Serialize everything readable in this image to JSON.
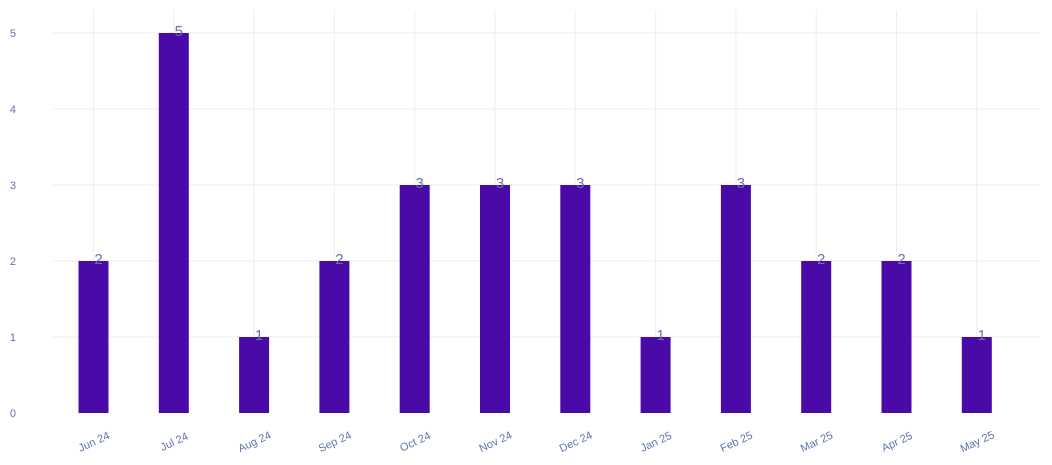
{
  "chart_data": {
    "type": "bar",
    "categories": [
      "Jun 24",
      "Jul 24",
      "Aug 24",
      "Sep 24",
      "Oct 24",
      "Nov 24",
      "Dec 24",
      "Jan 25",
      "Feb 25",
      "Mar 25",
      "Apr 25",
      "May 25"
    ],
    "values": [
      2,
      5,
      1,
      2,
      3,
      3,
      3,
      1,
      3,
      2,
      2,
      1
    ],
    "title": "",
    "xlabel": "",
    "ylabel": "",
    "ylim": [
      0,
      5
    ],
    "yticks": [
      "0",
      "1",
      "2",
      "3",
      "4",
      "5"
    ],
    "grid": true,
    "data_labels": true,
    "colors": {
      "bar": "#4a0aa8",
      "text": "#6670b0",
      "grid": "#eeeef2"
    }
  }
}
